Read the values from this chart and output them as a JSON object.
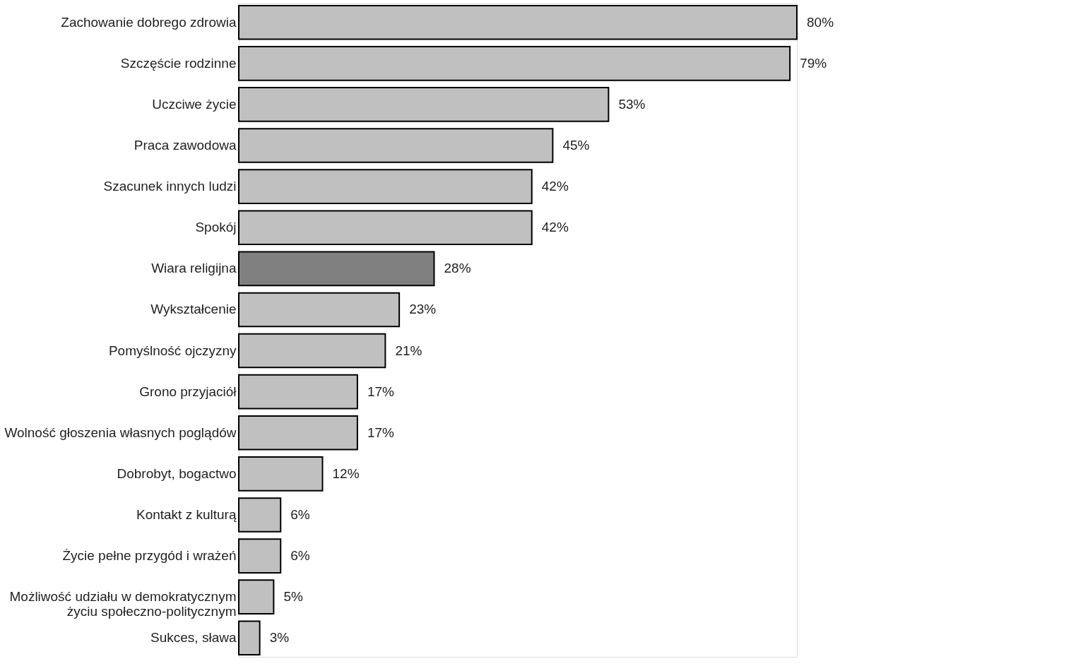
{
  "chart_data": {
    "type": "bar",
    "orientation": "horizontal",
    "categories": [
      "Zachowanie dobrego zdrowia",
      "Szczęście rodzinne",
      "Uczciwe życie",
      "Praca zawodowa",
      "Szacunek innych ludzi",
      "Spokój",
      "Wiara religijna",
      "Wykształcenie",
      "Pomyślność ojczyzny",
      "Grono przyjaciół",
      "Wolność głoszenia własnych poglądów",
      "Dobrobyt, bogactwo",
      "Kontakt z kulturą",
      "Życie pełne przygód i wrażeń",
      "Możliwość udziału w demokratycznym\nżyciu społeczno-politycznym",
      "Sukces, sława"
    ],
    "values": [
      80,
      79,
      53,
      45,
      42,
      42,
      28,
      23,
      21,
      17,
      17,
      12,
      6,
      6,
      5,
      3
    ],
    "colors": [
      "#c0c0c0",
      "#c0c0c0",
      "#c0c0c0",
      "#c0c0c0",
      "#c0c0c0",
      "#c0c0c0",
      "#808080",
      "#c0c0c0",
      "#c0c0c0",
      "#c0c0c0",
      "#c0c0c0",
      "#c0c0c0",
      "#c0c0c0",
      "#c0c0c0",
      "#c0c0c0",
      "#c0c0c0"
    ],
    "value_labels": [
      "80%",
      "79%",
      "53%",
      "45%",
      "42%",
      "42%",
      "28%",
      "23%",
      "21%",
      "17%",
      "17%",
      "12%",
      "6%",
      "6%",
      "5%",
      "3%"
    ]
  }
}
